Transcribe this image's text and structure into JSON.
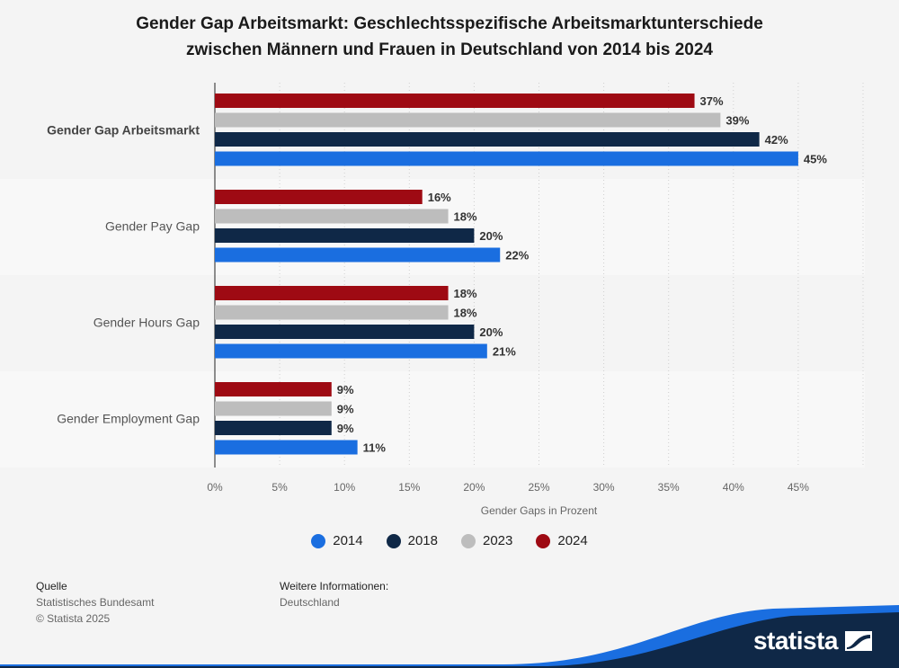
{
  "title_line1": "Gender Gap Arbeitsmarkt: Geschlechtsspezifische Arbeitsmarktunterschiede",
  "title_line2": "zwischen Männern und Frauen in Deutschland von 2014 bis 2024",
  "chart_data": {
    "type": "bar",
    "orientation": "horizontal",
    "categories": [
      "Gender Gap Arbeitsmarkt",
      "Gender Pay Gap",
      "Gender Hours Gap",
      "Gender Employment Gap"
    ],
    "bold_category": "Gender Gap Arbeitsmarkt",
    "series": [
      {
        "name": "2024",
        "color": "#9e0a13",
        "values": [
          37,
          16,
          18,
          9
        ]
      },
      {
        "name": "2023",
        "color": "#bdbdbd",
        "values": [
          39,
          18,
          18,
          9
        ]
      },
      {
        "name": "2018",
        "color": "#0f2847",
        "values": [
          42,
          20,
          20,
          9
        ]
      },
      {
        "name": "2014",
        "color": "#1a6ee0",
        "values": [
          45,
          22,
          21,
          11
        ]
      }
    ],
    "xlim": [
      0,
      50
    ],
    "xticks": [
      "0%",
      "5%",
      "10%",
      "15%",
      "20%",
      "25%",
      "30%",
      "35%",
      "40%",
      "45%"
    ],
    "xlabel": "Gender Gaps in Prozent",
    "value_suffix": "%",
    "legend_order": [
      "2014",
      "2018",
      "2023",
      "2024"
    ],
    "legend_position": "bottom"
  },
  "source": {
    "heading": "Quelle",
    "line1": "Statistisches Bundesamt",
    "line2": "© Statista 2025"
  },
  "more_info": {
    "heading": "Weitere Informationen:",
    "line1": "Deutschland"
  },
  "brand": {
    "name": "statista",
    "color": "#1a6ee0",
    "dark": "#0f2847"
  }
}
